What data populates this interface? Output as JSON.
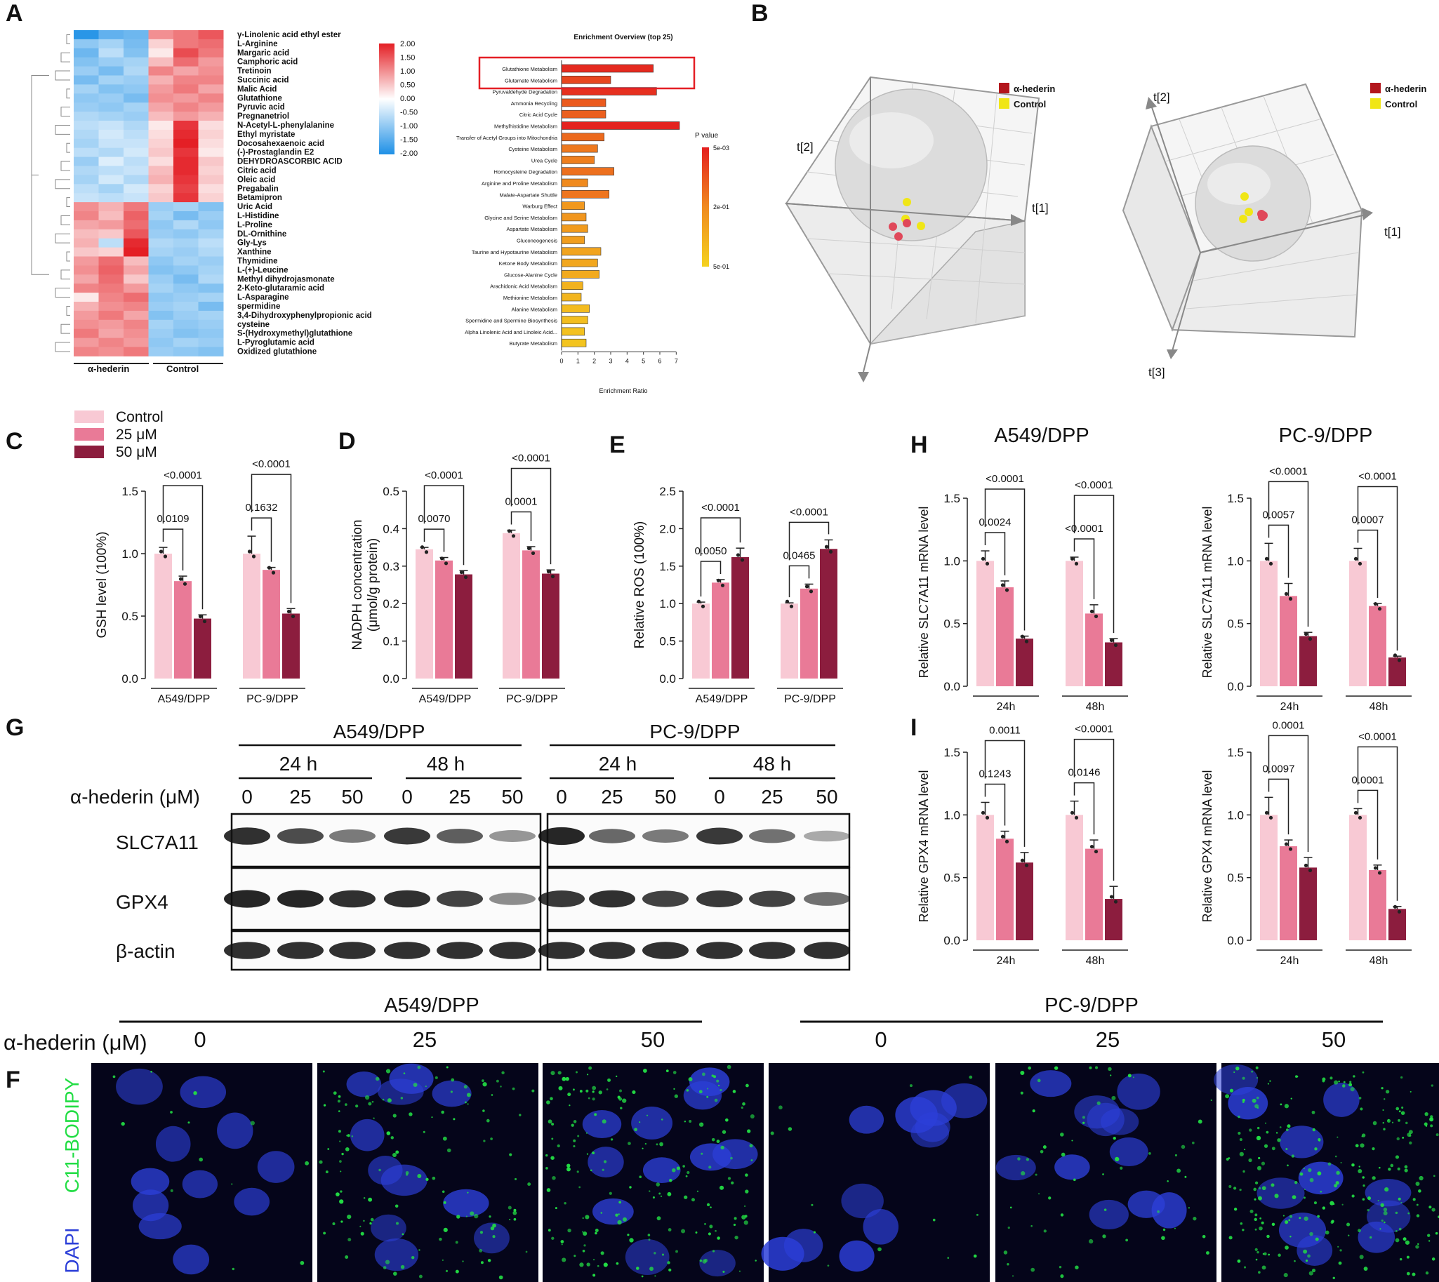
{
  "panel_letters": [
    "A",
    "B",
    "C",
    "D",
    "E",
    "H",
    "G",
    "I",
    "F"
  ],
  "colors": {
    "control": "#f8c9d4",
    "c25": "#e97a97",
    "c50": "#8c1d3e",
    "heat_high": "#e41f25",
    "heat_mid": "#ffffff",
    "heat_low": "#1e90e6",
    "pca_hederin": "#b3161c",
    "pca_control": "#f0e616",
    "enrich_high": "#e41f1f",
    "enrich_low": "#f4d21f",
    "bodipy": "#22dd44",
    "dapi": "#2c3fd8"
  },
  "legend_treat": {
    "control": "Control",
    "c25": "25 μM",
    "c50": "50 μM"
  },
  "heatmap": {
    "metabolites": [
      "γ-Linolenic acid ethyl ester",
      "L-Arginine",
      "Margaric acid",
      "Camphoric acid",
      "Tretinoin",
      "Succinic acid",
      "Malic Acid",
      "Glutathione",
      "Pyruvic acid",
      "Pregnanetriol",
      "N-Acetyl-L-phenylalanine",
      "Ethyl myristate",
      "Docosahexaenoic acid",
      "(-)-Prostaglandin E2",
      "DEHYDROASCORBIC ACID",
      "Citric acid",
      "Oleic acid",
      "Pregabalin",
      "Betamipron",
      "Uric Acid",
      "L-Histidine",
      "L-Proline",
      "DL-Ornithine",
      "Gly-Lys",
      "Xanthine",
      "Thymidine",
      "L-(+)-Leucine",
      "Methyl dihydrojasmonate",
      "2-Keto-glutaramic acid",
      "L-Asparagine",
      "spermidine",
      "3,4-Dihydroxyphenylpropionic acid",
      "cysteine",
      "S-(Hydroxymethyl)glutathione",
      "L-Pyroglutamic acid",
      "Oxidized glutathione"
    ],
    "values": [
      [
        -1.9,
        -1.4,
        -1.3,
        1.0,
        1.2,
        1.5
      ],
      [
        -1.0,
        -0.8,
        -1.2,
        0.4,
        1.2,
        1.3
      ],
      [
        -1.3,
        -0.6,
        -1.1,
        0.2,
        1.6,
        1.2
      ],
      [
        -1.1,
        -0.9,
        -0.8,
        0.6,
        1.3,
        0.9
      ],
      [
        -0.9,
        -1.2,
        -0.7,
        1.1,
        0.8,
        1.0
      ],
      [
        -1.2,
        -0.8,
        -0.9,
        0.7,
        1.1,
        1.1
      ],
      [
        -0.8,
        -1.1,
        -1.0,
        0.9,
        1.2,
        0.8
      ],
      [
        -1.0,
        -0.9,
        -1.2,
        1.0,
        0.9,
        1.1
      ],
      [
        -0.9,
        -1.0,
        -0.8,
        0.8,
        1.1,
        0.9
      ],
      [
        -0.7,
        -0.8,
        -0.9,
        0.6,
        0.9,
        0.7
      ],
      [
        -0.6,
        -0.5,
        -0.7,
        0.2,
        1.8,
        0.3
      ],
      [
        -0.7,
        -0.4,
        -0.6,
        0.3,
        1.9,
        0.4
      ],
      [
        -0.8,
        -0.5,
        -0.5,
        0.4,
        2.0,
        0.3
      ],
      [
        -0.6,
        -0.7,
        -0.4,
        0.5,
        1.8,
        0.2
      ],
      [
        -0.9,
        -0.3,
        -0.6,
        0.3,
        1.9,
        0.5
      ],
      [
        -0.7,
        -0.6,
        -0.5,
        0.6,
        1.9,
        0.4
      ],
      [
        -0.8,
        -0.4,
        -0.7,
        0.7,
        1.8,
        0.5
      ],
      [
        -0.6,
        -0.8,
        -0.4,
        0.4,
        1.7,
        0.3
      ],
      [
        -0.5,
        -0.6,
        -0.5,
        0.5,
        1.8,
        0.4
      ],
      [
        1.0,
        0.7,
        1.2,
        -0.9,
        -0.8,
        -1.1
      ],
      [
        1.1,
        0.6,
        1.4,
        -0.8,
        -1.2,
        -0.9
      ],
      [
        0.8,
        0.9,
        1.3,
        -1.0,
        -0.7,
        -1.0
      ],
      [
        0.6,
        0.5,
        1.5,
        -0.9,
        -1.0,
        -0.8
      ],
      [
        0.7,
        -0.6,
        1.9,
        -0.7,
        -0.8,
        -0.6
      ],
      [
        0.5,
        0.4,
        2.0,
        -0.8,
        -0.9,
        -0.7
      ],
      [
        0.9,
        1.3,
        0.6,
        -1.0,
        -0.8,
        -0.9
      ],
      [
        1.0,
        1.4,
        0.8,
        -1.1,
        -1.0,
        -0.8
      ],
      [
        0.8,
        1.3,
        0.5,
        -0.9,
        -1.2,
        -0.7
      ],
      [
        1.1,
        1.2,
        0.9,
        -0.8,
        -1.0,
        -1.1
      ],
      [
        0.2,
        1.1,
        1.3,
        -1.0,
        -0.9,
        -0.8
      ],
      [
        0.7,
        1.0,
        1.1,
        -0.9,
        -0.8,
        -1.2
      ],
      [
        0.9,
        1.2,
        0.8,
        -1.1,
        -0.9,
        -0.8
      ],
      [
        1.0,
        0.9,
        1.1,
        -0.8,
        -1.0,
        -0.9
      ],
      [
        1.2,
        0.8,
        1.0,
        -0.9,
        -1.1,
        -1.0
      ],
      [
        0.9,
        1.1,
        0.9,
        -1.0,
        -0.8,
        -0.9
      ],
      [
        1.1,
        1.0,
        1.2,
        -0.9,
        -1.0,
        -1.1
      ]
    ],
    "group_labels": [
      "α-hederin",
      "Control"
    ],
    "scale_ticks": [
      "2.00",
      "1.50",
      "1.00",
      "0.50",
      "0.00",
      "-0.50",
      "-1.00",
      "-1.50",
      "-2.00"
    ]
  },
  "enrichment": {
    "title": "Enrichment Overview (top 25)",
    "xlabel": "Enrichment Ratio",
    "legend_title": "P value",
    "legend_ticks": [
      "5e-03",
      "2e-01",
      "5e-01"
    ],
    "pathways": [
      "Glutathione Metabolism",
      "Glutamate Metabolism",
      "Pyruvaldehyde Degradation",
      "Ammonia Recycling",
      "Citric Acid Cycle",
      "Methylhistidine Metabolism",
      "Transfer of Acetyl Groups into Mitochondria",
      "Cysteine Metabolism",
      "Urea Cycle",
      "Homocysteine Degradation",
      "Arginine and Proline Metabolism",
      "Malate-Aspartate Shuttle",
      "Warburg Effect",
      "Glycine and Serine Metabolism",
      "Aspartate Metabolism",
      "Gluconeogenesis",
      "Taurine and Hypotaurine Metabolism",
      "Ketone Body Metabolism",
      "Glucose-Alanine Cycle",
      "Arachidonic Acid Metabolism",
      "Methionine Metabolism",
      "Alanine Metabolism",
      "Spermidine and Spermine Biosynthesis",
      "Alpha Linolenic Acid and Linoleic Acid...",
      "Butyrate Metabolism"
    ],
    "ratios": [
      5.6,
      3.0,
      5.8,
      2.7,
      2.7,
      7.2,
      2.6,
      2.2,
      2.0,
      3.2,
      1.6,
      2.9,
      1.4,
      1.5,
      1.6,
      1.4,
      2.4,
      2.2,
      2.3,
      1.3,
      1.2,
      1.7,
      1.6,
      1.4,
      1.5
    ],
    "color_t": [
      0.05,
      0.18,
      0.08,
      0.28,
      0.3,
      0.02,
      0.35,
      0.42,
      0.45,
      0.38,
      0.5,
      0.4,
      0.6,
      0.58,
      0.62,
      0.64,
      0.68,
      0.7,
      0.72,
      0.78,
      0.8,
      0.84,
      0.86,
      0.88,
      0.9
    ],
    "xticks": [
      "0",
      "1",
      "2",
      "3",
      "4",
      "5",
      "6",
      "7"
    ],
    "xlim": [
      0,
      7.5
    ]
  },
  "pca": {
    "legend": [
      "α-hederin",
      "Control"
    ],
    "axes_left": [
      "t[2]",
      "t[1]"
    ],
    "axes_right": [
      "t[2]",
      "t[1]",
      "t[3]"
    ]
  },
  "bar_charts": [
    {
      "id": "C",
      "ylabel": "GSH level (100%)",
      "ylim": [
        0,
        1.5
      ],
      "yticks": [
        "0.0",
        "0.5",
        "1.0",
        "1.5"
      ],
      "groups": [
        "A549/DPP",
        "PC-9/DPP"
      ],
      "values": [
        [
          1.0,
          0.78,
          0.48
        ],
        [
          1.0,
          0.87,
          0.52
        ]
      ],
      "errors": [
        [
          0.05,
          0.04,
          0.03
        ],
        [
          0.14,
          0.02,
          0.04
        ]
      ],
      "pvals": [
        [
          "0.0109",
          "<0.0001"
        ],
        [
          "0.1632",
          "<0.0001"
        ]
      ]
    },
    {
      "id": "D",
      "ylabel": "NADPH concentration",
      "ylabel2": "(μmol/g protein)",
      "ylim": [
        0,
        0.5
      ],
      "yticks": [
        "0.0",
        "0.1",
        "0.2",
        "0.3",
        "0.4",
        "0.5"
      ],
      "groups": [
        "A549/DPP",
        "PC-9/DPP"
      ],
      "values": [
        [
          0.345,
          0.315,
          0.278
        ],
        [
          0.388,
          0.342,
          0.28
        ]
      ],
      "errors": [
        [
          0.005,
          0.008,
          0.01
        ],
        [
          0.008,
          0.01,
          0.01
        ]
      ],
      "pvals": [
        [
          "0.0070",
          "<0.0001"
        ],
        [
          "0.0001",
          "<0.0001"
        ]
      ]
    },
    {
      "id": "E",
      "ylabel": "Relative ROS (100%)",
      "ylim": [
        0,
        2.5
      ],
      "yticks": [
        "0.0",
        "0.5",
        "1.0",
        "1.5",
        "2.0",
        "2.5"
      ],
      "groups": [
        "A549/DPP",
        "PC-9/DPP"
      ],
      "values": [
        [
          1.0,
          1.28,
          1.62
        ],
        [
          1.0,
          1.2,
          1.73
        ]
      ],
      "errors": [
        [
          0.02,
          0.04,
          0.12
        ],
        [
          0.01,
          0.06,
          0.12
        ]
      ],
      "pvals": [
        [
          "0.0050",
          "<0.0001"
        ],
        [
          "0.0465",
          "<0.0001"
        ]
      ]
    },
    {
      "id": "H1",
      "title": "A549/DPP",
      "ylabel": "Relative SLC7A11 mRNA level",
      "ylim": [
        0,
        1.5
      ],
      "yticks": [
        "0.0",
        "0.5",
        "1.0",
        "1.5"
      ],
      "groups": [
        "24h",
        "48h"
      ],
      "values": [
        [
          1.0,
          0.79,
          0.38
        ],
        [
          1.0,
          0.58,
          0.35
        ]
      ],
      "errors": [
        [
          0.08,
          0.05,
          0.02
        ],
        [
          0.03,
          0.07,
          0.03
        ]
      ],
      "pvals": [
        [
          "0.0024",
          "<0.0001"
        ],
        [
          "<0.0001",
          "<0.0001"
        ]
      ]
    },
    {
      "id": "H2",
      "title": "PC-9/DPP",
      "ylabel": "Relative SLC7A11 mRNA level",
      "ylim": [
        0,
        1.5
      ],
      "yticks": [
        "0.0",
        "0.5",
        "1.0",
        "1.5"
      ],
      "groups": [
        "24h",
        "48h"
      ],
      "values": [
        [
          1.0,
          0.72,
          0.4
        ],
        [
          1.0,
          0.64,
          0.23
        ]
      ],
      "errors": [
        [
          0.14,
          0.1,
          0.03
        ],
        [
          0.1,
          0.02,
          0.01
        ]
      ],
      "pvals": [
        [
          "0.0057",
          "<0.0001"
        ],
        [
          "0.0007",
          "<0.0001"
        ]
      ]
    },
    {
      "id": "I1",
      "ylabel": "Relative GPX4 mRNA level",
      "ylim": [
        0,
        1.5
      ],
      "yticks": [
        "0.0",
        "0.5",
        "1.0",
        "1.5"
      ],
      "groups": [
        "24h",
        "48h"
      ],
      "values": [
        [
          1.0,
          0.81,
          0.62
        ],
        [
          1.0,
          0.73,
          0.33
        ]
      ],
      "errors": [
        [
          0.1,
          0.06,
          0.08
        ],
        [
          0.11,
          0.07,
          0.1
        ]
      ],
      "pvals": [
        [
          "0.1243",
          "0.0011"
        ],
        [
          "0.0146",
          "<0.0001"
        ]
      ]
    },
    {
      "id": "I2",
      "ylabel": "Relative GPX4 mRNA level",
      "ylim": [
        0,
        1.5
      ],
      "yticks": [
        "0.0",
        "0.5",
        "1.0",
        "1.5"
      ],
      "groups": [
        "24h",
        "48h"
      ],
      "values": [
        [
          1.0,
          0.75,
          0.58
        ],
        [
          1.0,
          0.56,
          0.25
        ]
      ],
      "errors": [
        [
          0.14,
          0.05,
          0.08
        ],
        [
          0.05,
          0.04,
          0.02
        ]
      ],
      "pvals": [
        [
          "0.0097",
          "0.0001"
        ],
        [
          "0.0001",
          "<0.0001"
        ]
      ]
    }
  ],
  "western": {
    "cell_lines": [
      "A549/DPP",
      "PC-9/DPP"
    ],
    "times": [
      "24 h",
      "48 h",
      "24 h",
      "48 h"
    ],
    "dose_label": "α-hederin (μM)",
    "doses": [
      "0",
      "25",
      "50",
      "0",
      "25",
      "50",
      "0",
      "25",
      "50",
      "0",
      "25",
      "50"
    ],
    "proteins": [
      "SLC7A11",
      "GPX4",
      "β-actin"
    ],
    "intensity": [
      [
        0.9,
        0.75,
        0.5,
        0.85,
        0.65,
        0.35,
        0.95,
        0.6,
        0.5,
        0.85,
        0.55,
        0.25
      ],
      [
        0.95,
        0.95,
        0.9,
        0.9,
        0.8,
        0.4,
        0.85,
        0.9,
        0.8,
        0.85,
        0.8,
        0.55
      ],
      [
        0.9,
        0.9,
        0.9,
        0.9,
        0.9,
        0.9,
        0.9,
        0.9,
        0.9,
        0.9,
        0.9,
        0.9
      ]
    ]
  },
  "microscopy": {
    "cell_lines": [
      "A549/DPP",
      "PC-9/DPP"
    ],
    "dose_label": "α-hederin (μM)",
    "doses": [
      "0",
      "25",
      "50",
      "0",
      "25",
      "50"
    ],
    "stain_green": "C11-BODIPY",
    "stain_blue": "DAPI",
    "bodipy_level": [
      0.05,
      0.5,
      0.75,
      0.05,
      0.25,
      0.95
    ]
  }
}
